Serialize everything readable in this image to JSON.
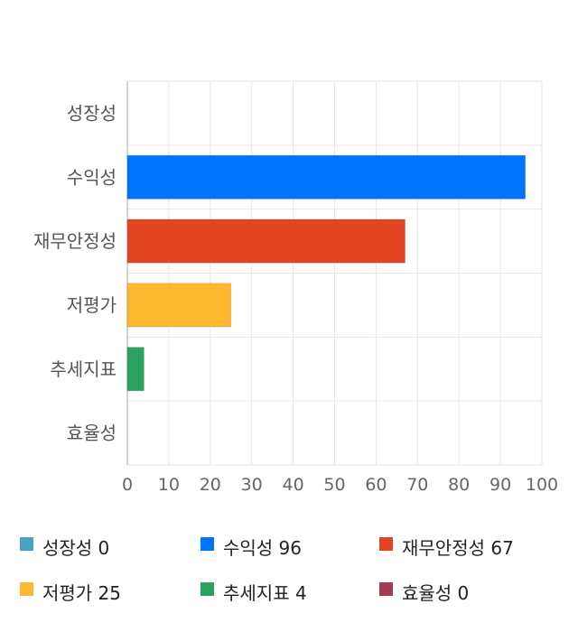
{
  "chart_data": {
    "type": "bar",
    "orientation": "horizontal",
    "categories": [
      "성장성",
      "수익성",
      "재무안정성",
      "저평가",
      "추세지표",
      "효율성"
    ],
    "values": [
      0,
      96,
      67,
      25,
      4,
      0
    ],
    "colors": [
      "#4aa3c0",
      "#0075ff",
      "#e34523",
      "#fdb731",
      "#2ca25f",
      "#a23c52"
    ],
    "xlim": [
      0,
      100
    ],
    "xticks": [
      0,
      10,
      20,
      30,
      40,
      50,
      60,
      70,
      80,
      90,
      100
    ],
    "grid": true,
    "legend_position": "bottom",
    "legend": [
      {
        "label": "성장성 0",
        "color": "#4aa3c0"
      },
      {
        "label": "수익성 96",
        "color": "#0075ff"
      },
      {
        "label": "재무안정성 67",
        "color": "#e34523"
      },
      {
        "label": "저평가 25",
        "color": "#fdb731"
      },
      {
        "label": "추세지표 4",
        "color": "#2ca25f"
      },
      {
        "label": "효율성 0",
        "color": "#a23c52"
      }
    ]
  }
}
